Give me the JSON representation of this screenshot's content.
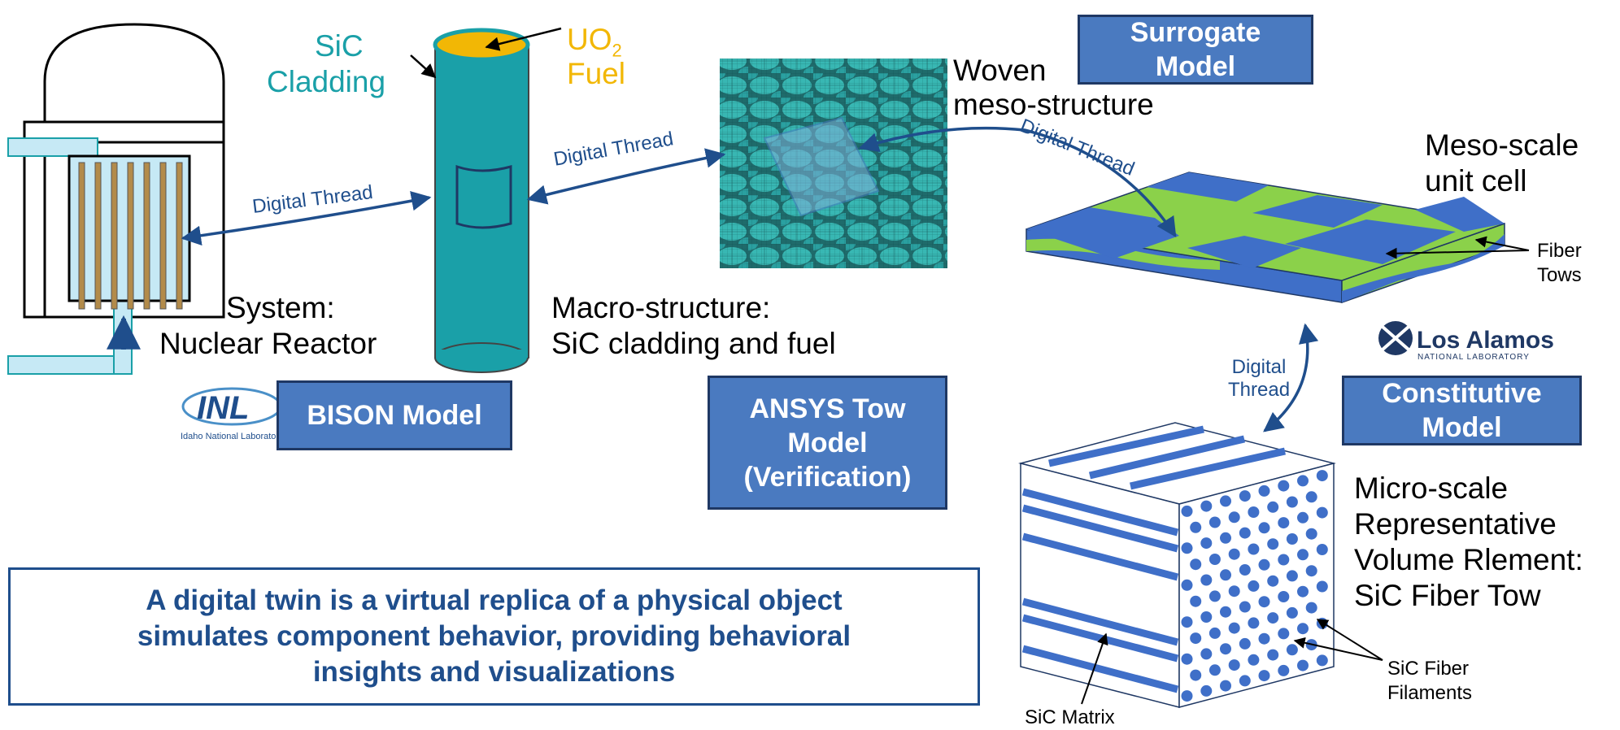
{
  "labels": {
    "sic_cladding_line1": "SiC",
    "sic_cladding_line2": "Cladding",
    "uo2_prefix": "UO",
    "uo2_sub": "2",
    "fuel": "Fuel",
    "system_line1": "System:",
    "system_line2": "Nuclear Reactor",
    "macro_line1": "Macro-structure:",
    "macro_line2": "SiC cladding and fuel",
    "woven_line1": "Woven",
    "woven_line2": "meso-structure",
    "meso_line1": "Meso-scale",
    "meso_line2": "unit cell",
    "fiber_tows_line1": "Fiber",
    "fiber_tows_line2": "Tows",
    "micro_line1": "Micro-scale",
    "micro_line2": "Representative",
    "micro_line3": "Volume Rlement:",
    "micro_line4": "SiC Fiber Tow",
    "sic_matrix": "SiC Matrix",
    "sic_filaments_line1": "SiC Fiber",
    "sic_filaments_line2": "Filaments",
    "thread_reactor": "Digital Thread",
    "thread_cladding": "Digital Thread",
    "thread_meso": "Digital Thread",
    "thread_micro_line1": "Digital",
    "thread_micro_line2": "Thread"
  },
  "boxes": {
    "bison": "BISON Model",
    "ansys_line1": "ANSYS Tow",
    "ansys_line2": "Model",
    "ansys_line3": "(Verification)",
    "surrogate_line1": "Surrogate",
    "surrogate_line2": "Model",
    "constitutive_line1": "Constitutive",
    "constitutive_line2": "Model"
  },
  "logos": {
    "inl_mark": "INL",
    "inl_name": "Idaho National Laboratory",
    "lanl_name": "Los Alamos",
    "lanl_sub": "NATIONAL LABORATORY"
  },
  "note": {
    "line1": "A digital twin is a virtual replica of a physical object",
    "line2": "simulates component behavior, providing behavioral",
    "line3": "insights and visualizations"
  },
  "colors": {
    "teal": "#1aa0a8",
    "gold": "#f2b705",
    "box_fill": "#4a7ac0",
    "box_border": "#1f3864",
    "thread": "#1f4e8c",
    "green": "#8bd14a",
    "blue": "#3f6fc8"
  }
}
